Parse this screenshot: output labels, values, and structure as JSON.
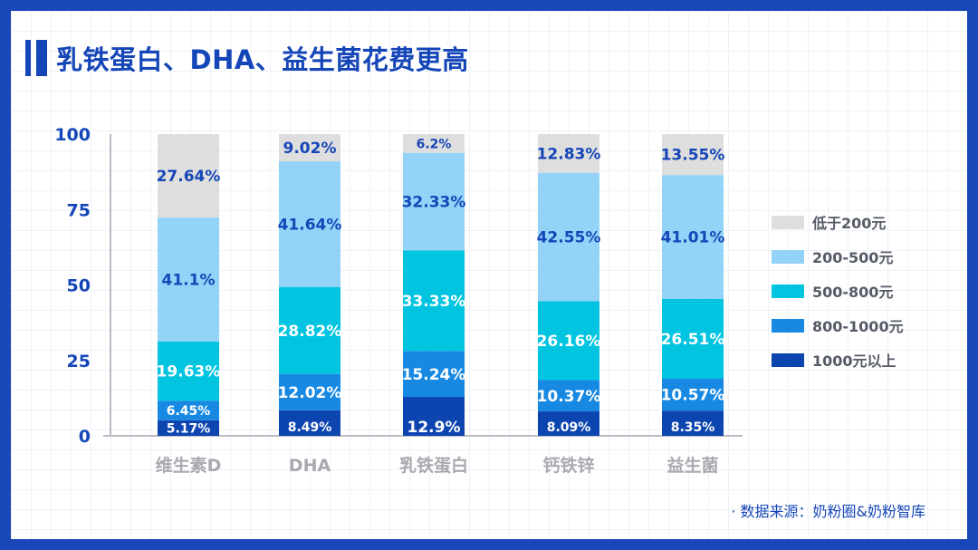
{
  "title": "乳铁蛋白、DHA、益生菌花费更高",
  "source": "· 数据来源：奶粉圈&奶粉智库",
  "colors": {
    "frame": "#1a47b8",
    "title": "#1546b8",
    "axis_text": "#1546b8",
    "category_text": "#a8aab0",
    "legend_text": "#555a66"
  },
  "chart_data": {
    "type": "bar",
    "stacked": true,
    "categories": [
      "维生素D",
      "DHA",
      "乳铁蛋白",
      "钙铁锌",
      "益生菌"
    ],
    "ylim": [
      0,
      100
    ],
    "yticks": [
      "0",
      "25",
      "50",
      "75",
      "100"
    ],
    "legend_position": "right",
    "series": [
      {
        "name": "1000元以上",
        "color": "#0d45b0",
        "label_color": "#ffffff",
        "values": [
          5.17,
          8.49,
          12.9,
          8.09,
          8.35
        ],
        "labels": [
          "5.17%",
          "8.49%",
          "12.9%",
          "8.09%",
          "8.35%"
        ]
      },
      {
        "name": "800-1000元",
        "color": "#1789e3",
        "label_color": "#ffffff",
        "values": [
          6.45,
          12.02,
          15.24,
          10.37,
          10.57
        ],
        "labels": [
          "6.45%",
          "12.02%",
          "15.24%",
          "10.37%",
          "10.57%"
        ]
      },
      {
        "name": "500-800元",
        "color": "#00c4e0",
        "label_color": "#ffffff",
        "values": [
          19.63,
          28.82,
          33.33,
          26.16,
          26.51
        ],
        "labels": [
          "19.63%",
          "28.82%",
          "33.33%",
          "26.16%",
          "26.51%"
        ]
      },
      {
        "name": "200-500元",
        "color": "#93d3f7",
        "label_color": "#1546b8",
        "values": [
          41.1,
          41.64,
          32.33,
          42.55,
          41.01
        ],
        "labels": [
          "41.1%",
          "41.64%",
          "32.33%",
          "42.55%",
          "41.01%"
        ]
      },
      {
        "name": "低于200元",
        "color": "#dededf",
        "label_color": "#1546b8",
        "values": [
          27.64,
          9.02,
          6.2,
          12.83,
          13.55
        ],
        "labels": [
          "27.64%",
          "9.02%",
          "6.2%",
          "12.83%",
          "13.55%"
        ]
      }
    ]
  }
}
